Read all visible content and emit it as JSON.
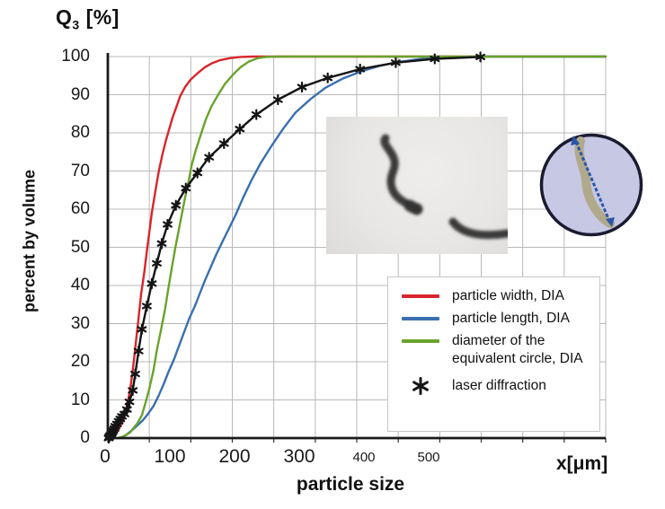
{
  "title": {
    "symbol": "Q",
    "subscript": "3",
    "unit": " [%]"
  },
  "y_axis": {
    "label": "percent by volume",
    "ticks": [
      100,
      90,
      80,
      70,
      60,
      50,
      40,
      30,
      20,
      10,
      0
    ]
  },
  "x_axis": {
    "label": "particle size",
    "unit_label": "x[μm]",
    "ticks": [
      0,
      100,
      200,
      300,
      400,
      500
    ]
  },
  "legend": {
    "items": [
      {
        "label": "particle width, DIA",
        "swatch": "line",
        "color": "#d9252b"
      },
      {
        "label": "particle length, DIA",
        "swatch": "line",
        "color": "#3a6fb0"
      },
      {
        "label": "diameter of the equivalent circle, DIA",
        "swatch": "line",
        "color": "#69a32c"
      },
      {
        "label": "laser diffraction",
        "swatch": "asterisk",
        "color": "#141414"
      }
    ]
  },
  "insets": {
    "photo_note": "grayscale microscope image of elongated particles",
    "circle_note": "equivalent circle drawn around a particle with blue diameter arrow",
    "photo_bg": "#eae8e6",
    "particle_dark": "#3a3a3a",
    "circle_fill": "#c6c8e4",
    "circle_stroke": "#1b1b30",
    "particle_tan": "#b1a98b",
    "arrow_blue": "#2b57a8"
  },
  "chart_data": {
    "type": "line",
    "title": "Q3 [%]",
    "xlabel": "particle size x[μm]",
    "ylabel": "percent by volume Q3 [%]",
    "xlim": [
      0,
      600
    ],
    "ylim": [
      0,
      100
    ],
    "x_grid_step": 50,
    "y_grid_step": 10,
    "grid": true,
    "legend_position": "inside lower right",
    "xticks": [
      0,
      100,
      200,
      300,
      400,
      500
    ],
    "yticks": [
      0,
      10,
      20,
      30,
      40,
      50,
      60,
      70,
      80,
      90,
      100
    ],
    "series": [
      {
        "name": "particle width, DIA",
        "color": "#d9252b",
        "style": "line",
        "points": [
          [
            2,
            0
          ],
          [
            6,
            0.4
          ],
          [
            9,
            1
          ],
          [
            12,
            2
          ],
          [
            15,
            3.2
          ],
          [
            19,
            5
          ],
          [
            22,
            7.5
          ],
          [
            25,
            10.5
          ],
          [
            28,
            14.5
          ],
          [
            31,
            19.5
          ],
          [
            34,
            25.5
          ],
          [
            37,
            31.5
          ],
          [
            40,
            37.5
          ],
          [
            44,
            43.5
          ],
          [
            47,
            49
          ],
          [
            50,
            54
          ],
          [
            53,
            59
          ],
          [
            56,
            63
          ],
          [
            59,
            67
          ],
          [
            62,
            70.5
          ],
          [
            66,
            74.5
          ],
          [
            70,
            78
          ],
          [
            74,
            81
          ],
          [
            78,
            84
          ],
          [
            83,
            87
          ],
          [
            87,
            89.5
          ],
          [
            93,
            92
          ],
          [
            100,
            94
          ],
          [
            108,
            95.6
          ],
          [
            117,
            97.2
          ],
          [
            126,
            98.3
          ],
          [
            136,
            99.1
          ],
          [
            148,
            99.6
          ],
          [
            160,
            99.9
          ],
          [
            175,
            100
          ],
          [
            600,
            100
          ]
        ]
      },
      {
        "name": "particle length, DIA",
        "color": "#3a6fb0",
        "style": "line",
        "points": [
          [
            17,
            0
          ],
          [
            23,
            1
          ],
          [
            30,
            2.2
          ],
          [
            36,
            3.4
          ],
          [
            42,
            4.6
          ],
          [
            48,
            6.2
          ],
          [
            55,
            8.4
          ],
          [
            61,
            11
          ],
          [
            67,
            14
          ],
          [
            73,
            17.3
          ],
          [
            80,
            20.8
          ],
          [
            86,
            24.3
          ],
          [
            92,
            27.8
          ],
          [
            98,
            31.3
          ],
          [
            105,
            34.6
          ],
          [
            111,
            38
          ],
          [
            117,
            41.3
          ],
          [
            123,
            44.3
          ],
          [
            130,
            47.8
          ],
          [
            137,
            51
          ],
          [
            145,
            54.5
          ],
          [
            154,
            58.5
          ],
          [
            163,
            63
          ],
          [
            173,
            67.5
          ],
          [
            184,
            72
          ],
          [
            197,
            76.5
          ],
          [
            211,
            81
          ],
          [
            226,
            85.3
          ],
          [
            244,
            88.8
          ],
          [
            262,
            91.8
          ],
          [
            283,
            94.2
          ],
          [
            305,
            96.1
          ],
          [
            328,
            97.6
          ],
          [
            351,
            98.6
          ],
          [
            375,
            99.3
          ],
          [
            398,
            99.7
          ],
          [
            425,
            99.9
          ],
          [
            455,
            100
          ],
          [
            600,
            100
          ]
        ]
      },
      {
        "name": "diameter of the equivalent circle, DIA",
        "color": "#69a32c",
        "style": "line",
        "points": [
          [
            12,
            0
          ],
          [
            17,
            0.3
          ],
          [
            22,
            0.8
          ],
          [
            27,
            1.5
          ],
          [
            31,
            2.6
          ],
          [
            36,
            4
          ],
          [
            41,
            6
          ],
          [
            45,
            9
          ],
          [
            50,
            13
          ],
          [
            55,
            17.8
          ],
          [
            59,
            23
          ],
          [
            64,
            28.3
          ],
          [
            69,
            33.8
          ],
          [
            73,
            39.3
          ],
          [
            77,
            44.5
          ],
          [
            81,
            49.5
          ],
          [
            85,
            54
          ],
          [
            89,
            58.5
          ],
          [
            93,
            63
          ],
          [
            97,
            67
          ],
          [
            101,
            71.5
          ],
          [
            106,
            75.5
          ],
          [
            112,
            79.5
          ],
          [
            118,
            83.5
          ],
          [
            125,
            87
          ],
          [
            133,
            90
          ],
          [
            141,
            92.8
          ],
          [
            151,
            95.3
          ],
          [
            160,
            97.2
          ],
          [
            170,
            98.7
          ],
          [
            181,
            99.6
          ],
          [
            191,
            99.9
          ],
          [
            205,
            100
          ],
          [
            600,
            100
          ]
        ]
      },
      {
        "name": "laser diffraction",
        "color": "#141414",
        "style": "line+asterisk-markers",
        "points": [
          [
            1,
            0
          ],
          [
            1.5,
            0.2
          ],
          [
            2,
            0.45
          ],
          [
            3,
            0.7
          ],
          [
            4,
            1
          ],
          [
            4.5,
            1.3
          ],
          [
            5.5,
            1.6
          ],
          [
            6.5,
            2
          ],
          [
            8,
            2.5
          ],
          [
            9,
            3.1
          ],
          [
            11,
            3.7
          ],
          [
            13,
            4.4
          ],
          [
            15,
            5
          ],
          [
            17,
            5.7
          ],
          [
            20,
            6.3
          ],
          [
            23,
            7.5
          ],
          [
            26,
            9.5
          ],
          [
            30,
            12.5
          ],
          [
            33,
            16.8
          ],
          [
            37,
            22.8
          ],
          [
            41,
            28.5
          ],
          [
            47,
            34.6
          ],
          [
            53,
            40.5
          ],
          [
            59,
            45.8
          ],
          [
            65,
            51
          ],
          [
            72,
            56
          ],
          [
            82,
            61
          ],
          [
            94,
            65.5
          ],
          [
            108,
            69.5
          ],
          [
            122,
            73.6
          ],
          [
            140,
            77.2
          ],
          [
            159,
            81
          ],
          [
            179,
            84.8
          ],
          [
            205,
            88.7
          ],
          [
            234,
            92
          ],
          [
            265,
            94.4
          ],
          [
            304,
            96.7
          ],
          [
            347,
            98.4
          ],
          [
            394,
            99.4
          ],
          [
            449,
            99.9
          ]
        ]
      }
    ]
  }
}
